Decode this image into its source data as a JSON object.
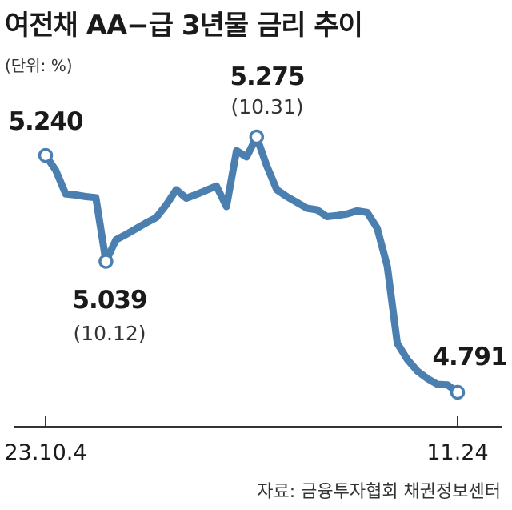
{
  "title": "여전채 AA−급 3년물 금리 추이",
  "unit_label": "(단위: %)",
  "source": "자료: 금융투자협회 채권정보센터",
  "colors": {
    "line": "#4a7fb0",
    "axis": "#333333",
    "marker_fill": "#ffffff"
  },
  "chart_data": {
    "type": "line",
    "title": "여전채 AA−급 3년물 금리 추이",
    "ylabel": "%",
    "x_ticks": [
      "23.10.4",
      "11.24"
    ],
    "ylim": [
      4.76,
      5.3
    ],
    "series": [
      {
        "x": [
          "23.10.4",
          "",
          "",
          "",
          "",
          "",
          "23.10.12",
          "",
          "",
          "",
          "",
          "",
          "",
          "",
          "",
          "",
          "",
          "",
          "",
          "",
          "",
          "23.10.31",
          "",
          "",
          "",
          "",
          "",
          "",
          "",
          "",
          "",
          "",
          "",
          "",
          "",
          "",
          "",
          "",
          "",
          "",
          "",
          "23.11.24"
        ],
        "values": [
          5.24,
          5.212,
          5.167,
          5.165,
          5.162,
          5.16,
          5.039,
          5.08,
          5.09,
          5.101,
          5.112,
          5.122,
          5.146,
          5.175,
          5.159,
          5.166,
          5.174,
          5.182,
          5.143,
          5.249,
          5.237,
          5.275,
          5.221,
          5.175,
          5.162,
          5.151,
          5.14,
          5.137,
          5.124,
          5.126,
          5.129,
          5.135,
          5.132,
          5.102,
          5.03,
          4.884,
          4.853,
          4.831,
          4.817,
          4.806,
          4.805,
          4.791
        ]
      }
    ],
    "annotations": [
      {
        "index": 0,
        "value": "5.240",
        "date": ""
      },
      {
        "index": 6,
        "value": "5.039",
        "date": "(10.12)"
      },
      {
        "index": 21,
        "value": "5.275",
        "date": "(10.31)"
      },
      {
        "index": 41,
        "value": "4.791",
        "date": ""
      }
    ]
  }
}
